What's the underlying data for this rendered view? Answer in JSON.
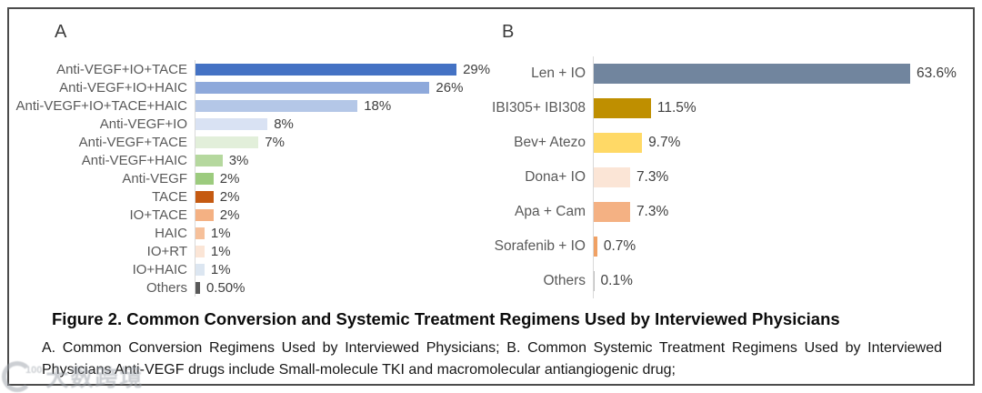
{
  "panels": {
    "a_label": "A",
    "b_label": "B"
  },
  "chart_data": [
    {
      "type": "bar",
      "orientation": "horizontal",
      "panel": "A",
      "title": "Common Conversion Regimens Used by Interviewed Physicians",
      "categories": [
        "Anti-VEGF+IO+TACE",
        "Anti-VEGF+IO+HAIC",
        "Anti-VEGF+IO+TACE+HAIC",
        "Anti-VEGF+IO",
        "Anti-VEGF+TACE",
        "Anti-VEGF+HAIC",
        "Anti-VEGF",
        "TACE",
        "IO+TACE",
        "HAIC",
        "IO+RT",
        "IO+HAIC",
        "Others"
      ],
      "values": [
        29,
        26,
        18,
        8,
        7,
        3,
        2,
        2,
        2,
        1,
        1,
        1,
        0.5
      ],
      "value_labels": [
        "29%",
        "26%",
        "18%",
        "8%",
        "7%",
        "3%",
        "2%",
        "2%",
        "2%",
        "1%",
        "1%",
        "1%",
        "0.50%"
      ],
      "bar_colors": [
        "#4472c4",
        "#8ea9db",
        "#b4c7e7",
        "#d9e2f3",
        "#e2efda",
        "#b5d89e",
        "#9ccb7e",
        "#c55a11",
        "#f4b183",
        "#f6c09a",
        "#fbe5d6",
        "#dce6f1",
        "#595959"
      ],
      "xlim": [
        0,
        30
      ],
      "grid": false,
      "legend": "none"
    },
    {
      "type": "bar",
      "orientation": "horizontal",
      "panel": "B",
      "title": "Common Systemic Treatment Regimens Used by Interviewed Physicians",
      "categories": [
        "Len + IO",
        "IBI305+ IBI308",
        "Bev+ Atezo",
        "Dona+ IO",
        "Apa + Cam",
        "Sorafenib + IO",
        "Others"
      ],
      "values": [
        63.6,
        11.5,
        9.7,
        7.3,
        7.3,
        0.7,
        0.1
      ],
      "value_labels": [
        "63.6%",
        "11.5%",
        "9.7%",
        "7.3%",
        "7.3%",
        "0.7%",
        "0.1%"
      ],
      "bar_colors": [
        "#71859e",
        "#bf8f00",
        "#ffd966",
        "#fbe5d6",
        "#f4b183",
        "#f0a164",
        "#bfbfbf"
      ],
      "xlim": [
        0,
        70
      ],
      "grid": false,
      "legend": "none"
    }
  ],
  "caption": {
    "title": "Figure 2. Common Conversion and Systemic Treatment Regimens Used by Interviewed Physicians",
    "subtitle": "A. Common Conversion Regimens Used by Interviewed Physicians; B. Common Systemic Treatment Regimens Used by Interviewed Physicians Anti-VEGF drugs include Small-molecule TKI and macromolecular antiangiogenic drug;"
  },
  "watermark": {
    "logo_number": "100",
    "text": "大数跨境"
  },
  "colors": {
    "frame_border": "#4c4c4c",
    "axis_line": "#d9d9d9",
    "category_label": "#595959",
    "value_label": "#404040"
  }
}
